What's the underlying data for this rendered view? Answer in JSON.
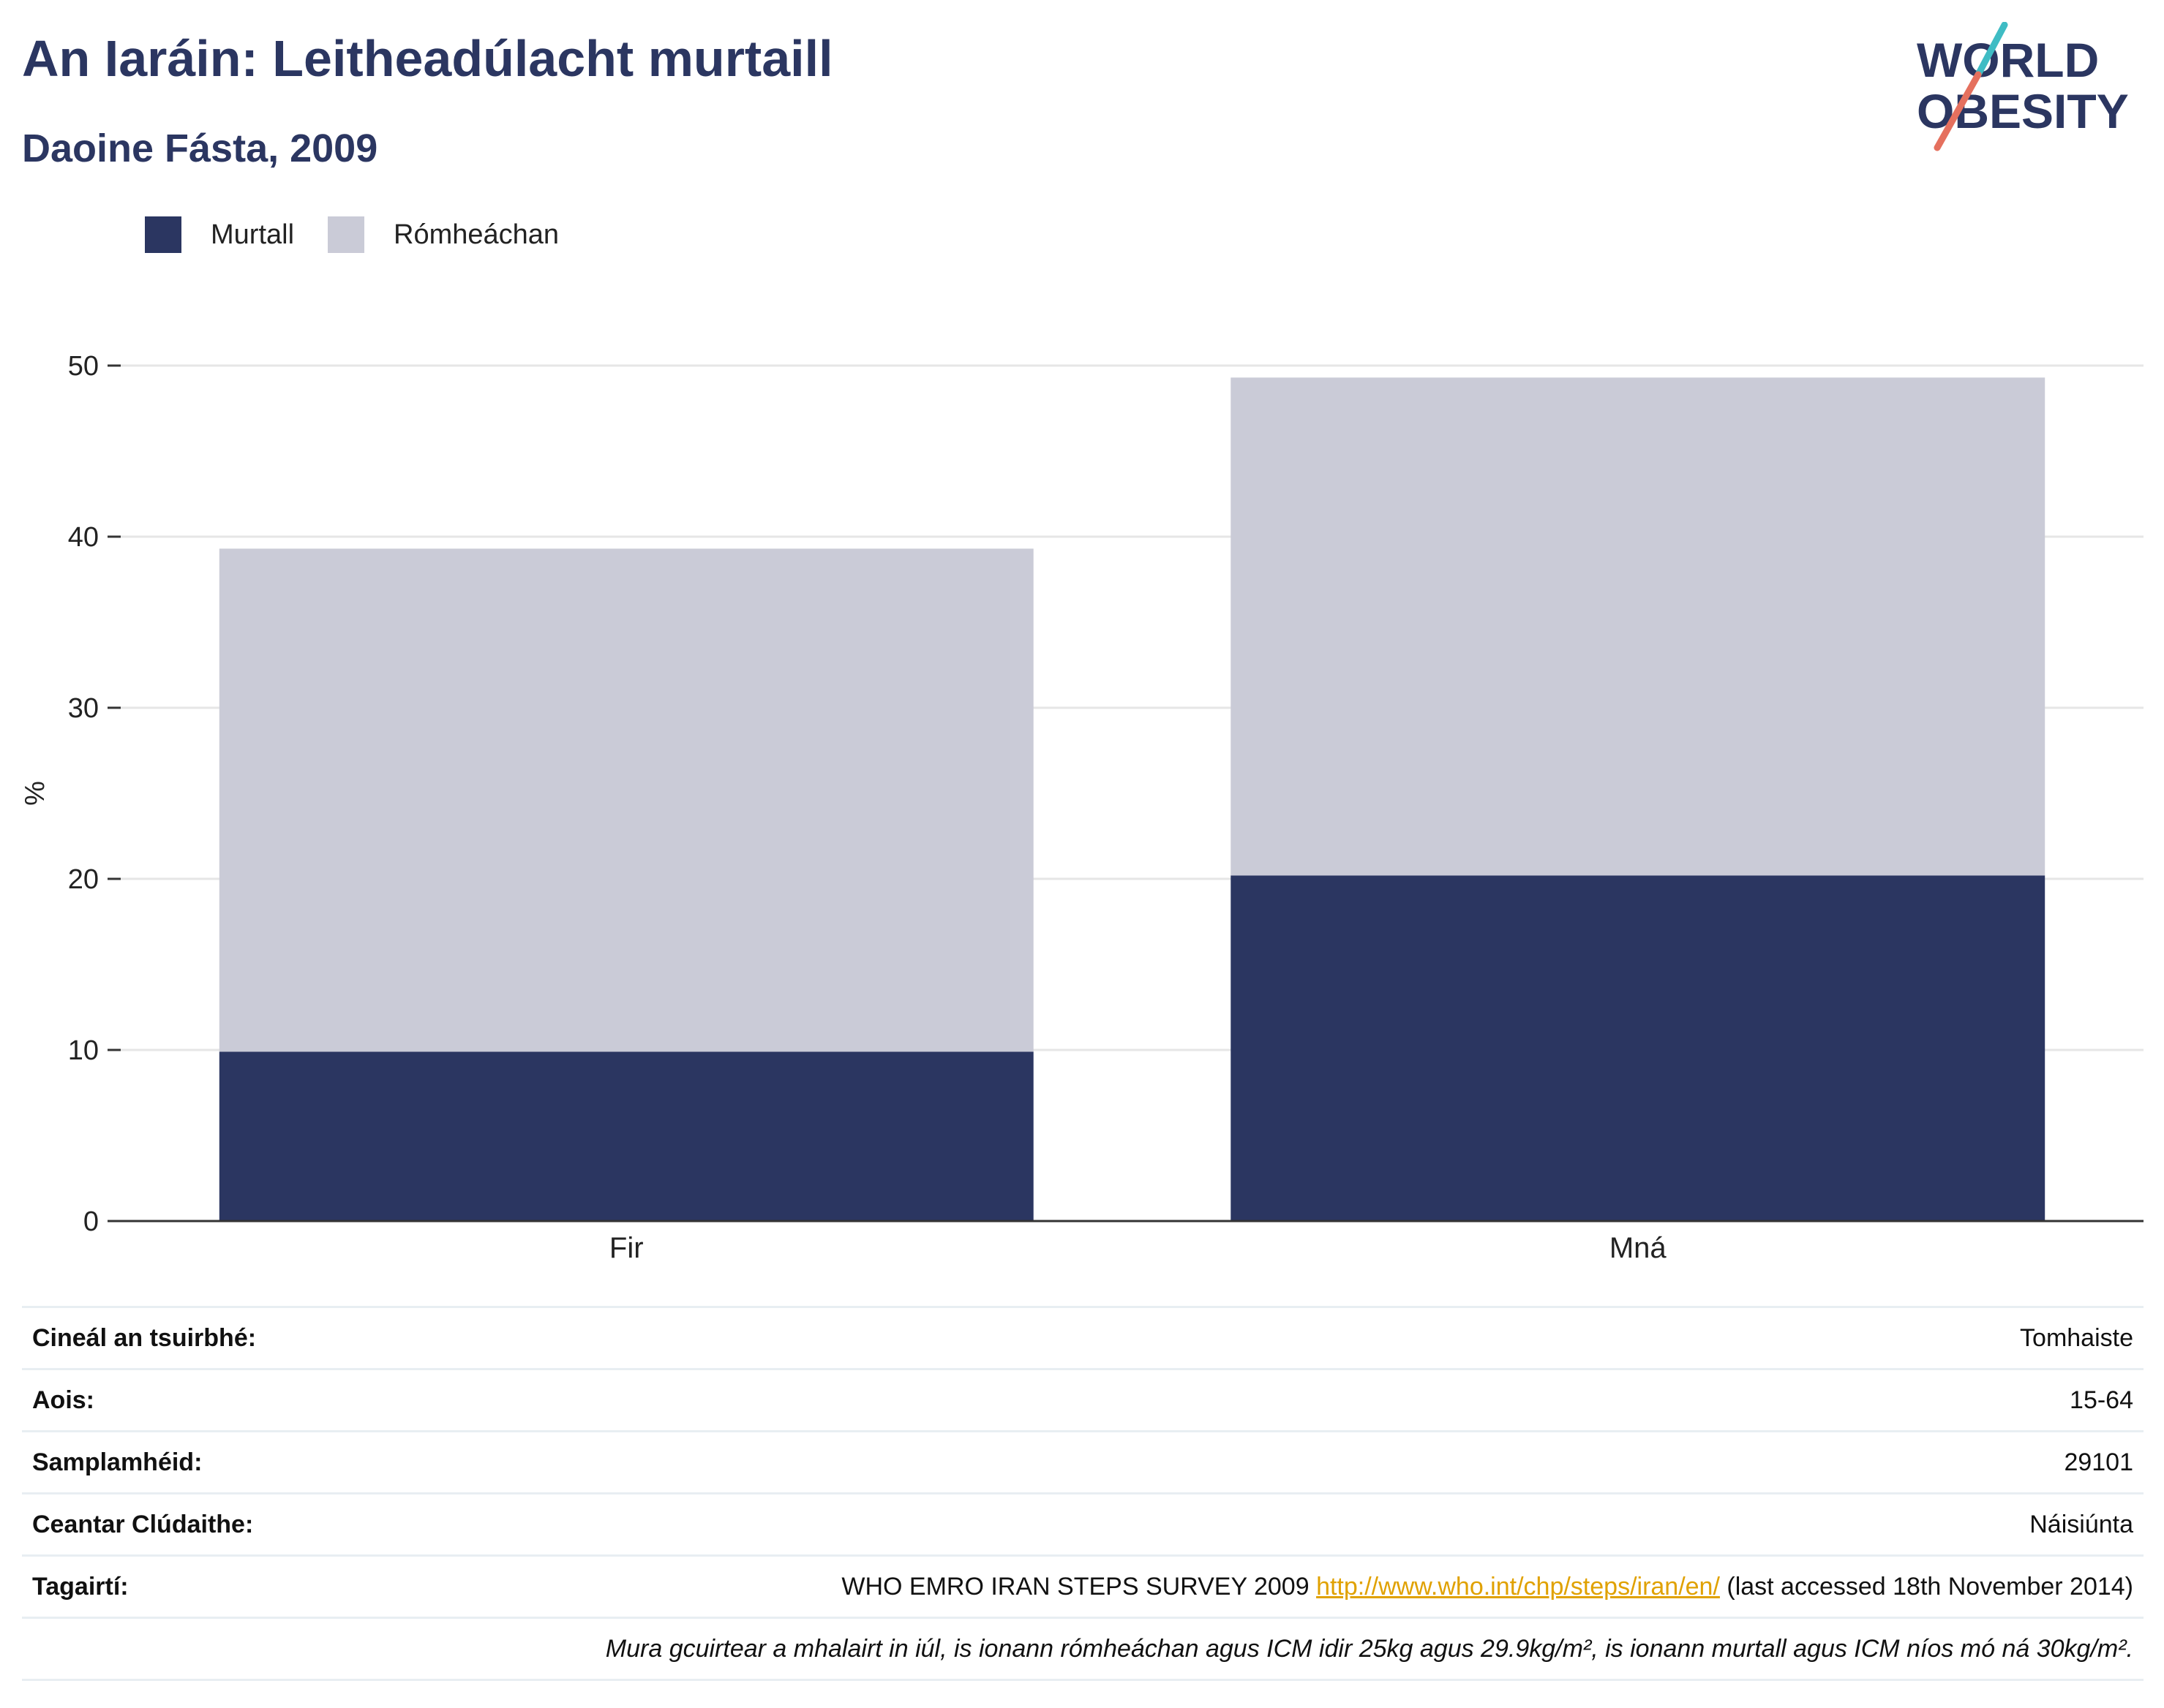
{
  "header": {
    "title": "An Iaráin: Leitheadúlacht murtaill",
    "subtitle": "Daoine Fásta, 2009"
  },
  "logo": {
    "line1": "WORLD",
    "line2": "OBESITY"
  },
  "colors": {
    "obese": "#2b3661",
    "overweight": "#cacbd7",
    "accent_teal": "#3fbcc4",
    "accent_coral": "#e5705e",
    "link": "#e0a100"
  },
  "chart_data": {
    "type": "bar",
    "stacked": true,
    "categories": [
      "Fir",
      "Mná"
    ],
    "series": [
      {
        "name": "Murtall",
        "values": [
          9.9,
          20.2
        ]
      },
      {
        "name": "Rómheáchan",
        "values": [
          29.4,
          29.1
        ]
      }
    ],
    "ylabel": "%",
    "ylim": [
      0,
      50
    ],
    "yticks": [
      0,
      10,
      20,
      30,
      40,
      50
    ],
    "grid": true,
    "legend": "top-left"
  },
  "info": {
    "rows": [
      {
        "label": "Cineál an tsuirbhé:",
        "value": "Tomhaiste"
      },
      {
        "label": "Aois:",
        "value": "15-64"
      },
      {
        "label": "Samplamhéid:",
        "value": "29101"
      },
      {
        "label": "Ceantar Clúdaithe:",
        "value": "Náisiúnta"
      }
    ],
    "reference": {
      "label": "Tagairtí:",
      "prefix": "WHO EMRO IRAN STEPS SURVEY 2009 ",
      "link": "http://www.who.int/chp/steps/iran/en/",
      "suffix": " (last accessed 18th November 2014)"
    },
    "note": "Mura gcuirtear a mhalairt in iúl, is ionann rómheáchan agus ICM idir 25kg agus 29.9kg/m², is ionann murtall agus ICM níos mó ná 30kg/m²."
  }
}
